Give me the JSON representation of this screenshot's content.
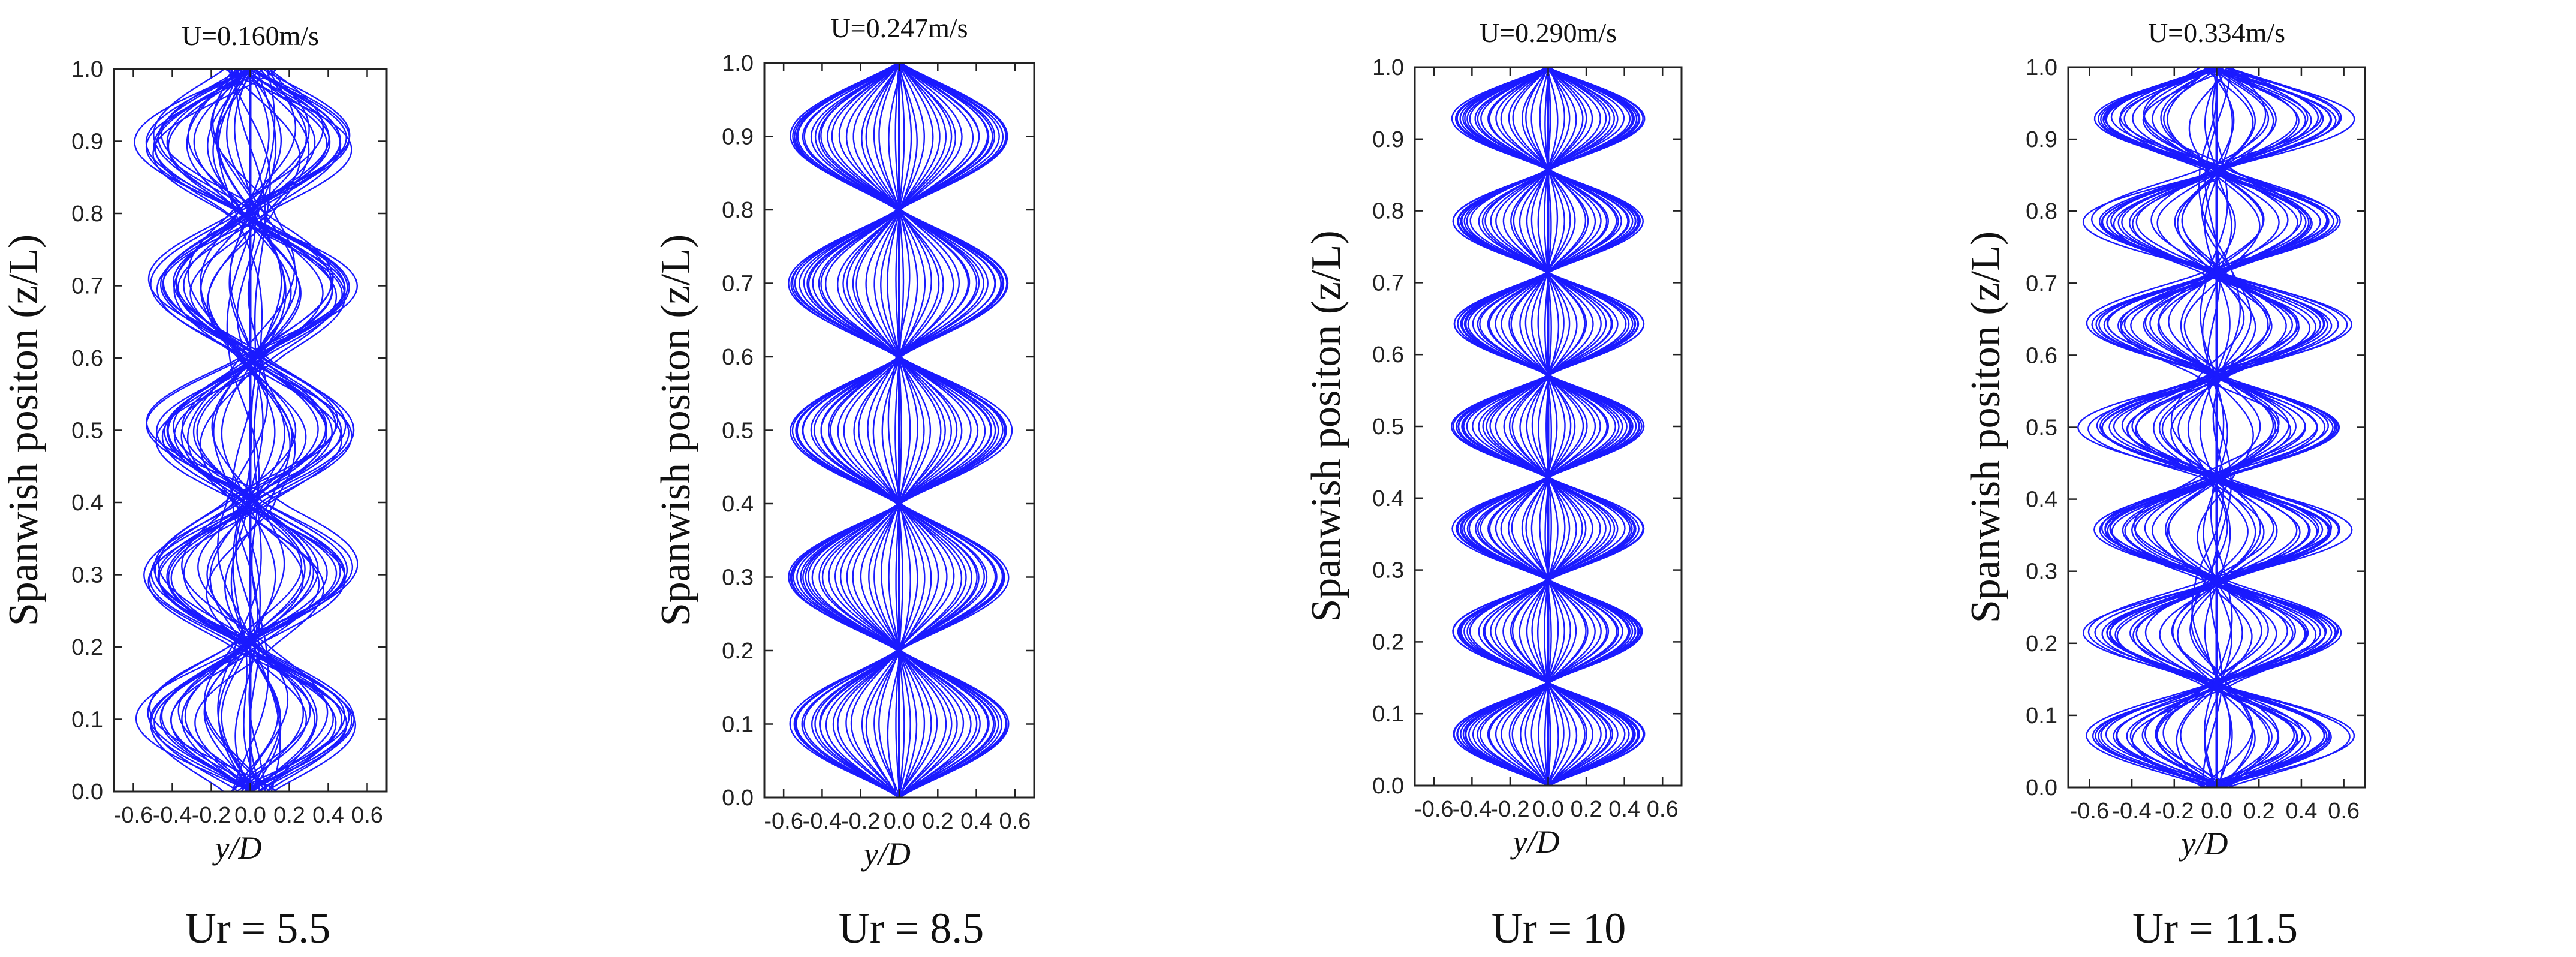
{
  "figure": {
    "line_color": "#1a1aff"
  },
  "chart_data": [
    {
      "type": "line",
      "title": "U=0.160m/s",
      "caption": "Ur = 5.5",
      "xlabel": "y/D",
      "ylabel": "Spanwish positon (z/L)",
      "xlim": [
        -0.7,
        0.7
      ],
      "ylim": [
        0.0,
        1.0
      ],
      "xticks": [
        -0.6,
        -0.4,
        -0.2,
        0.0,
        0.2,
        0.4,
        0.6
      ],
      "xtick_labels": [
        "-0.6",
        "-0.4",
        "-0.2",
        "0.0",
        "0.2",
        "0.4",
        "0.6"
      ],
      "yticks": [
        0.0,
        0.1,
        0.2,
        0.3,
        0.4,
        0.5,
        0.6,
        0.7,
        0.8,
        0.9,
        1.0
      ],
      "ytick_labels": [
        "0.0",
        "0.1",
        "0.2",
        "0.3",
        "0.4",
        "0.5",
        "0.6",
        "0.7",
        "0.8",
        "0.9",
        "1.0"
      ],
      "mode_nodes": [
        0.0,
        0.2,
        0.4,
        0.6,
        0.8,
        1.0
      ],
      "max_amplitude": 0.52,
      "irregularity": 0.55,
      "envelope_description": "irregular multi-mode traces, lobes centred near 0.1, 0.3, 0.5, 0.7, 0.9"
    },
    {
      "type": "line",
      "title": "U=0.247m/s",
      "caption": "Ur = 8.5",
      "xlabel": "y/D",
      "ylabel": "Spanwish positon (z/L)",
      "xlim": [
        -0.7,
        0.7
      ],
      "ylim": [
        0.0,
        1.0
      ],
      "xticks": [
        -0.6,
        -0.4,
        -0.2,
        0.0,
        0.2,
        0.4,
        0.6
      ],
      "xtick_labels": [
        "-0.6",
        "-0.4",
        "-0.2",
        "0.0",
        "0.2",
        "0.4",
        "0.6"
      ],
      "yticks": [
        0.0,
        0.1,
        0.2,
        0.3,
        0.4,
        0.5,
        0.6,
        0.7,
        0.8,
        0.9,
        1.0
      ],
      "ytick_labels": [
        "0.0",
        "0.1",
        "0.2",
        "0.3",
        "0.4",
        "0.5",
        "0.6",
        "0.7",
        "0.8",
        "0.9",
        "1.0"
      ],
      "mode_nodes": [
        0.0,
        0.2,
        0.4,
        0.6,
        0.8,
        1.0
      ],
      "max_amplitude": 0.58,
      "irregularity": 0.05,
      "envelope_description": "regular 5-lobe standing wave, antinodes near 0.1, 0.3, 0.5, 0.7, 0.9"
    },
    {
      "type": "line",
      "title": "U=0.290m/s",
      "caption": "Ur = 10",
      "xlabel": "y/D",
      "ylabel": "Spanwish positon (z/L)",
      "xlim": [
        -0.7,
        0.7
      ],
      "ylim": [
        0.0,
        1.0
      ],
      "xticks": [
        -0.6,
        -0.4,
        -0.2,
        0.0,
        0.2,
        0.4,
        0.6
      ],
      "xtick_labels": [
        "-0.6",
        "-0.4",
        "-0.2",
        "0.0",
        "0.2",
        "0.4",
        "0.6"
      ],
      "yticks": [
        0.0,
        0.1,
        0.2,
        0.3,
        0.4,
        0.5,
        0.6,
        0.7,
        0.8,
        0.9,
        1.0
      ],
      "ytick_labels": [
        "0.0",
        "0.1",
        "0.2",
        "0.3",
        "0.4",
        "0.5",
        "0.6",
        "0.7",
        "0.8",
        "0.9",
        "1.0"
      ],
      "mode_nodes": [
        0.0,
        0.143,
        0.286,
        0.429,
        0.571,
        0.714,
        0.857,
        1.0
      ],
      "max_amplitude": 0.51,
      "irregularity": 0.04,
      "envelope_description": "regular 7-lobe standing wave"
    },
    {
      "type": "line",
      "title": "U=0.334m/s",
      "caption": "Ur = 11.5",
      "xlabel": "y/D",
      "ylabel": "Spanwish positon (z/L)",
      "xlim": [
        -0.7,
        0.7
      ],
      "ylim": [
        0.0,
        1.0
      ],
      "xticks": [
        -0.6,
        -0.4,
        -0.2,
        0.0,
        0.2,
        0.4,
        0.6
      ],
      "xtick_labels": [
        "-0.6",
        "-0.4",
        "-0.2",
        "0.0",
        "0.2",
        "0.4",
        "0.6"
      ],
      "yticks": [
        0.0,
        0.1,
        0.2,
        0.3,
        0.4,
        0.5,
        0.6,
        0.7,
        0.8,
        0.9,
        1.0
      ],
      "ytick_labels": [
        "0.0",
        "0.1",
        "0.2",
        "0.3",
        "0.4",
        "0.5",
        "0.6",
        "0.7",
        "0.8",
        "0.9",
        "1.0"
      ],
      "mode_nodes": [
        0.0,
        0.143,
        0.286,
        0.429,
        0.571,
        0.714,
        0.857,
        1.0
      ],
      "max_amplitude": 0.6,
      "irregularity": 0.3,
      "envelope_description": "7-lobe pattern with mixed-mode irregular traces"
    }
  ]
}
